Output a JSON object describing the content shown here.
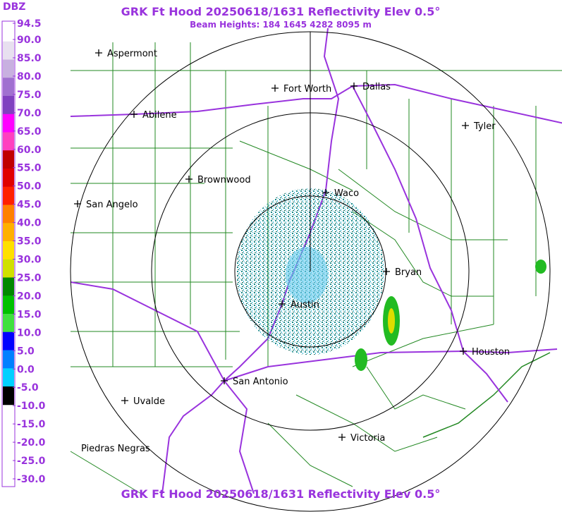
{
  "header": {
    "title": "GRK Ft Hood 20250618/1631 Reflectivity Elev 0.5°",
    "subtitle": "Beam Heights: 184 1645 4282 8095 m"
  },
  "footer": {
    "title": "GRK Ft Hood 20250618/1631 Reflectivity Elev 0.5°"
  },
  "colorbar": {
    "label": "DBZ",
    "ticks": [
      "94.5",
      "90.0",
      "85.0",
      "80.0",
      "75.0",
      "70.0",
      "65.0",
      "60.0",
      "55.0",
      "50.0",
      "45.0",
      "40.0",
      "35.0",
      "30.0",
      "25.0",
      "20.0",
      "15.0",
      "10.0",
      "5.0",
      "0.0",
      "-5.0",
      "-10.0",
      "-15.0",
      "-20.0",
      "-25.0",
      "-30.0"
    ]
  },
  "cities": [
    "Aspermont",
    "Fort Worth",
    "Dallas",
    "Abilene",
    "Tyler",
    "Brownwood",
    "Waco",
    "San Angelo",
    "Bryan",
    "Austin",
    "Houston",
    "San Antonio",
    "Uvalde",
    "Victoria",
    "Piedras Negras"
  ]
}
